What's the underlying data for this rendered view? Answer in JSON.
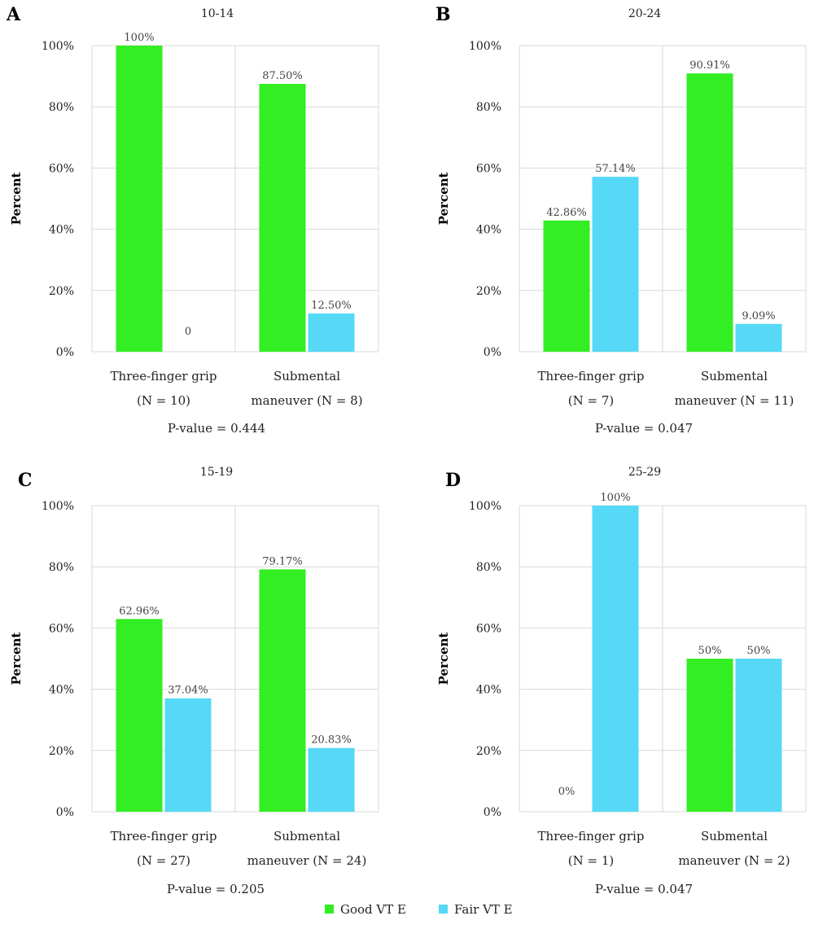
{
  "legend": [
    {
      "name": "Good VT  E",
      "color": "#33ee22"
    },
    {
      "name": "Fair VT E",
      "color": "#55d9f6"
    }
  ],
  "chart_data": [
    {
      "panel": "A",
      "type": "bar",
      "title": "10-14",
      "ylabel": "Percent",
      "ylim": [
        0,
        100
      ],
      "yticks": [
        "0%",
        "20%",
        "40%",
        "60%",
        "80%",
        "100%"
      ],
      "categories": [
        [
          "Three-finger grip",
          "(N = 10)"
        ],
        [
          "Submental",
          "maneuver (N = 8)"
        ]
      ],
      "series": [
        {
          "name": "Good VT  E",
          "values": [
            100,
            87.5
          ],
          "labels": [
            "100%",
            "87.50%"
          ]
        },
        {
          "name": "Fair VT E",
          "values": [
            0,
            12.5
          ],
          "labels": [
            "0",
            "12.50%"
          ]
        }
      ],
      "pvalue": "P-value = 0.444",
      "grid": true
    },
    {
      "panel": "B",
      "type": "bar",
      "title": "20-24",
      "ylabel": "Percent",
      "ylim": [
        0,
        100
      ],
      "yticks": [
        "0%",
        "20%",
        "40%",
        "60%",
        "80%",
        "100%"
      ],
      "categories": [
        [
          "Three-finger grip",
          "(N = 7)"
        ],
        [
          "Submental",
          "maneuver (N = 11)"
        ]
      ],
      "series": [
        {
          "name": "Good VT  E",
          "values": [
            42.86,
            90.91
          ],
          "labels": [
            "42.86%",
            "90.91%"
          ]
        },
        {
          "name": "Fair VT E",
          "values": [
            57.14,
            9.09
          ],
          "labels": [
            "57.14%",
            "9.09%"
          ]
        }
      ],
      "pvalue": "P-value = 0.047",
      "grid": true
    },
    {
      "panel": "C",
      "type": "bar",
      "title": "15-19",
      "ylabel": "Percent",
      "ylim": [
        0,
        100
      ],
      "yticks": [
        "0%",
        "20%",
        "40%",
        "60%",
        "80%",
        "100%"
      ],
      "categories": [
        [
          "Three-finger grip",
          "(N = 27)"
        ],
        [
          "Submental",
          "maneuver (N = 24)"
        ]
      ],
      "series": [
        {
          "name": "Good VT  E",
          "values": [
            62.96,
            79.17
          ],
          "labels": [
            "62.96%",
            "79.17%"
          ]
        },
        {
          "name": "Fair VT E",
          "values": [
            37.04,
            20.83
          ],
          "labels": [
            "37.04%",
            "20.83%"
          ]
        }
      ],
      "pvalue": "P-value = 0.205",
      "grid": true
    },
    {
      "panel": "D",
      "type": "bar",
      "title": "25-29",
      "ylabel": "Percent",
      "ylim": [
        0,
        100
      ],
      "yticks": [
        "0%",
        "20%",
        "40%",
        "60%",
        "80%",
        "100%"
      ],
      "categories": [
        [
          "Three-finger grip",
          "(N = 1)"
        ],
        [
          "Submental",
          "maneuver (N = 2)"
        ]
      ],
      "series": [
        {
          "name": "Good VT  E",
          "values": [
            0,
            50
          ],
          "labels": [
            "0%",
            "50%"
          ]
        },
        {
          "name": "Fair VT E",
          "values": [
            100,
            50
          ],
          "labels": [
            "100%",
            "50%"
          ]
        }
      ],
      "pvalue": "P-value = 0.047",
      "grid": true
    }
  ]
}
